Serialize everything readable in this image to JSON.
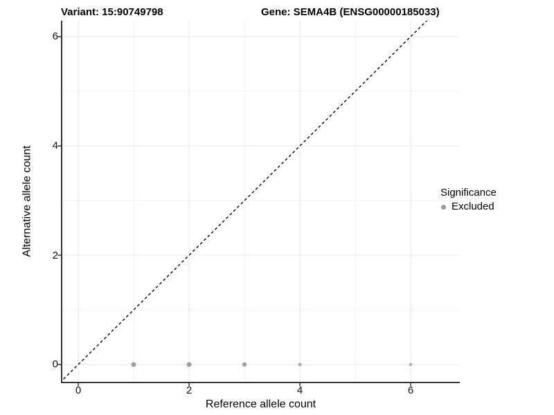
{
  "header": {
    "variant_title": "Variant: 15:90749798",
    "gene_title": "Gene: SEMA4B (ENSG00000185033)"
  },
  "legend": {
    "title": "Significance",
    "items": [
      {
        "label": "Excluded",
        "color": "#999999"
      }
    ]
  },
  "chart_data": {
    "type": "scatter",
    "title": "Variant: 15:90749798 | Gene: SEMA4B (ENSG00000185033)",
    "xlabel": "Reference allele count",
    "ylabel": "Alternative allele count",
    "x_ticks": [
      0,
      2,
      4,
      6
    ],
    "y_ticks": [
      0,
      2,
      4,
      6
    ],
    "x_tick_labels": [
      "0",
      "2",
      "4",
      "6"
    ],
    "y_tick_labels": [
      "0",
      "2",
      "4",
      "6"
    ],
    "x_minor_ticks": [
      1,
      3,
      5
    ],
    "y_minor_ticks": [
      1,
      3,
      5
    ],
    "xlim": [
      -0.3,
      6.9
    ],
    "ylim": [
      -0.33,
      6.33
    ],
    "grid": "major-and-minor",
    "legend_position": "right",
    "series": [
      {
        "name": "Excluded",
        "color": "#a0a0a0",
        "points": [
          {
            "x": 1,
            "y": 0,
            "size": 7,
            "opacity": 1
          },
          {
            "x": 2,
            "y": 0,
            "size": 7,
            "opacity": 1
          },
          {
            "x": 3,
            "y": 0,
            "size": 6.5,
            "opacity": 1
          },
          {
            "x": 4,
            "y": 0,
            "size": 5,
            "opacity": 0.85
          },
          {
            "x": 6,
            "y": 0,
            "size": 4.5,
            "opacity": 0.8
          }
        ]
      }
    ],
    "reference_line": {
      "type": "y=x",
      "style": "dashed",
      "color": "#000000"
    },
    "colors": {
      "grid_major": "#e4e4e4",
      "grid_minor": "#f1f1f1",
      "axis": "#333333",
      "point": "#a0a0a0"
    }
  }
}
